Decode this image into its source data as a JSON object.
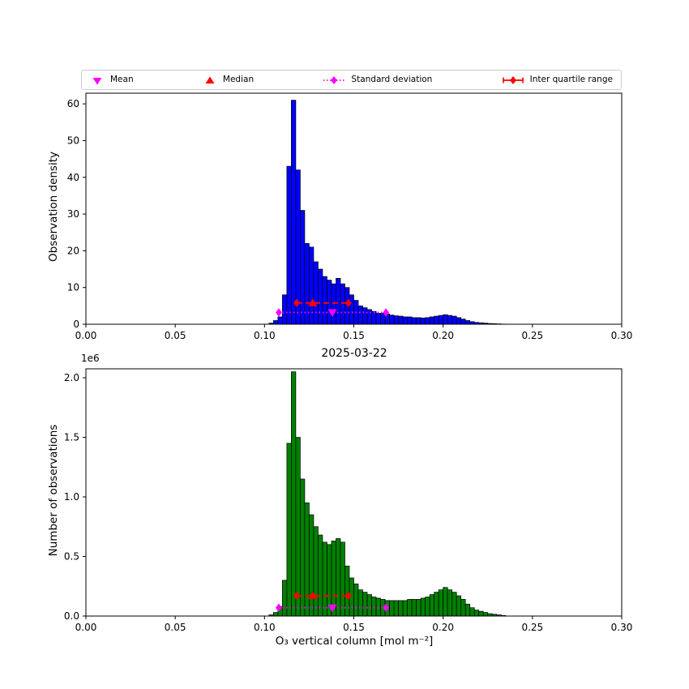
{
  "figure": {
    "title": "2025-03-22",
    "xlabel": "O₃ vertical column [mol m⁻²]",
    "background": "#ffffff"
  },
  "legend": {
    "items": [
      {
        "label": "Mean",
        "marker": "triangle-down",
        "color": "#ff00ff"
      },
      {
        "label": "Median",
        "marker": "triangle-up",
        "color": "#ff0000"
      },
      {
        "label": "Standard deviation",
        "marker": "diamond-dotted-line",
        "color": "#ff00ff"
      },
      {
        "label": "Inter quartile range",
        "marker": "diamond-solid-line",
        "color": "#ff0000"
      }
    ]
  },
  "chart_data": [
    {
      "type": "bar",
      "subtype": "histogram",
      "ylabel": "Observation density",
      "bar_color": "#0000ff",
      "bar_edge_color": "#000000",
      "xlim": [
        0.0,
        0.3
      ],
      "ylim": [
        0.0,
        62.9
      ],
      "xticks": [
        0.0,
        0.05,
        0.1,
        0.15,
        0.2,
        0.25,
        0.3
      ],
      "yticks": [
        0,
        10,
        20,
        30,
        40,
        50,
        60
      ],
      "ytick_decimals": 0,
      "bin_start": 0.1025,
      "bin_width": 0.0025,
      "values": [
        0.3,
        1.0,
        2.0,
        8.0,
        43,
        61,
        42,
        31,
        22,
        21,
        17,
        15,
        13,
        12,
        11,
        12.5,
        11,
        10,
        8,
        6.5,
        5,
        4.5,
        4,
        3.5,
        3,
        3,
        2.8,
        2.5,
        2.3,
        2.2,
        2.0,
        2.0,
        1.8,
        1.8,
        1.7,
        1.8,
        2.0,
        2.2,
        2.4,
        2.6,
        2.4,
        2.2,
        1.8,
        1.4,
        1.0,
        0.7,
        0.5,
        0.4,
        0.3,
        0.2,
        0.15,
        0.1,
        0.05
      ],
      "colors": {
        "mean": "#ff00ff",
        "median": "#ff0000",
        "std": "#ff00ff",
        "iqr": "#ff0000"
      },
      "stats": {
        "mean_x": 0.138,
        "median_x": 0.127,
        "std_range": [
          0.108,
          0.168
        ],
        "iqr_range": [
          0.118,
          0.147
        ],
        "std_line_y": 3.2,
        "iqr_line_y": 5.8
      }
    },
    {
      "type": "bar",
      "subtype": "histogram",
      "ylabel": "Number of observations",
      "scale_offset_text": "1e6",
      "bar_color": "#008000",
      "bar_edge_color": "#000000",
      "xlim": [
        0.0,
        0.3
      ],
      "ylim": [
        0.0,
        2.075
      ],
      "xticks": [
        0.0,
        0.05,
        0.1,
        0.15,
        0.2,
        0.25,
        0.3
      ],
      "yticks": [
        0.0,
        0.5,
        1.0,
        1.5,
        2.0
      ],
      "ytick_decimals": 1,
      "bin_start": 0.1025,
      "bin_width": 0.0025,
      "values": [
        0.01,
        0.03,
        0.08,
        0.3,
        1.45,
        2.05,
        1.5,
        1.15,
        0.95,
        0.85,
        0.75,
        0.68,
        0.62,
        0.6,
        0.63,
        0.65,
        0.62,
        0.42,
        0.32,
        0.27,
        0.22,
        0.2,
        0.18,
        0.16,
        0.15,
        0.14,
        0.13,
        0.13,
        0.13,
        0.13,
        0.13,
        0.14,
        0.14,
        0.14,
        0.15,
        0.16,
        0.18,
        0.2,
        0.22,
        0.24,
        0.22,
        0.2,
        0.17,
        0.14,
        0.1,
        0.07,
        0.05,
        0.04,
        0.03,
        0.02,
        0.015,
        0.01,
        0.005
      ],
      "colors": {
        "mean": "#ff00ff",
        "median": "#ff0000",
        "std": "#ff00ff",
        "iqr": "#ff0000"
      },
      "stats": {
        "mean_x": 0.138,
        "median_x": 0.127,
        "std_range": [
          0.108,
          0.168
        ],
        "iqr_range": [
          0.118,
          0.147
        ],
        "std_line_y": 0.07,
        "iqr_line_y": 0.17
      }
    }
  ]
}
